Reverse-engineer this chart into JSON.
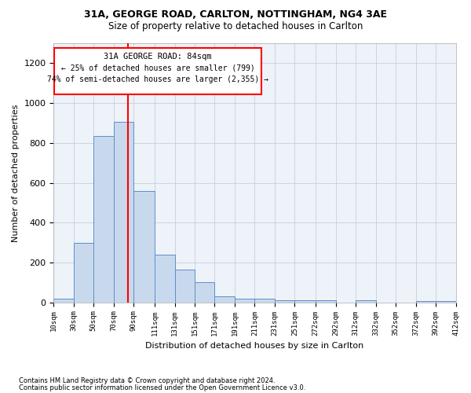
{
  "title1": "31A, GEORGE ROAD, CARLTON, NOTTINGHAM, NG4 3AE",
  "title2": "Size of property relative to detached houses in Carlton",
  "xlabel": "Distribution of detached houses by size in Carlton",
  "ylabel": "Number of detached properties",
  "footnote1": "Contains HM Land Registry data © Crown copyright and database right 2024.",
  "footnote2": "Contains public sector information licensed under the Open Government Licence v3.0.",
  "annotation_line1": "31A GEORGE ROAD: 84sqm",
  "annotation_line2": "← 25% of detached houses are smaller (799)",
  "annotation_line3": "74% of semi-detached houses are larger (2,355) →",
  "property_sqm": 84,
  "bar_color": "#c9d9ed",
  "bar_edge_color": "#5b8fc9",
  "red_line_x": 84,
  "ylim": [
    0,
    1300
  ],
  "yticks": [
    0,
    200,
    400,
    600,
    800,
    1000,
    1200
  ],
  "bins": [
    10,
    30,
    50,
    70,
    90,
    111,
    131,
    151,
    171,
    191,
    211,
    231,
    251,
    272,
    292,
    312,
    332,
    352,
    372,
    392,
    412
  ],
  "bar_values": [
    20,
    300,
    835,
    905,
    560,
    240,
    165,
    100,
    30,
    20,
    20,
    10,
    10,
    10,
    0,
    10,
    0,
    0,
    5,
    5
  ],
  "tick_labels": [
    "10sqm",
    "30sqm",
    "50sqm",
    "70sqm",
    "90sqm",
    "111sqm",
    "131sqm",
    "151sqm",
    "171sqm",
    "191sqm",
    "211sqm",
    "231sqm",
    "251sqm",
    "272sqm",
    "292sqm",
    "312sqm",
    "332sqm",
    "352sqm",
    "372sqm",
    "392sqm",
    "412sqm"
  ],
  "bg_color": "#ffffff",
  "ax_bg_color": "#eef2f9",
  "grid_color": "#c0c8d8"
}
